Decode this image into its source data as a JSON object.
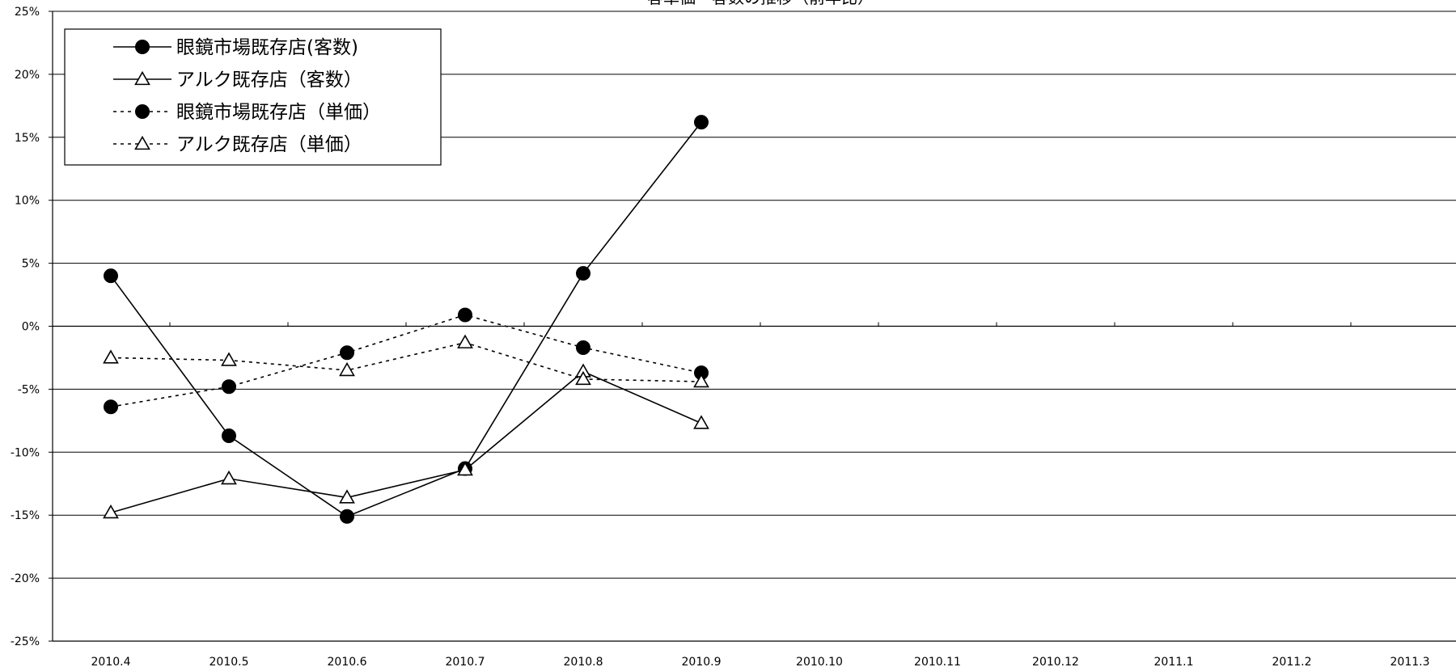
{
  "chart_data": {
    "type": "line",
    "title": "客単価・客数の推移（前年比）",
    "categories": [
      "2010.4",
      "2010.5",
      "2010.6",
      "2010.7",
      "2010.8",
      "2010.9",
      "2010.10",
      "2010.11",
      "2010.12",
      "2011.1",
      "2011.2",
      "2011.3"
    ],
    "y_ticks": [
      "25%",
      "20%",
      "15%",
      "10%",
      "5%",
      "0%",
      "-5%",
      "-10%",
      "-15%",
      "-20%",
      "-25%"
    ],
    "ylim": [
      -25,
      25
    ],
    "y_unit": "%",
    "grid": true,
    "legend_position": "top-left",
    "series": [
      {
        "name": "眼鏡市場既存店(客数)",
        "line_style": "solid",
        "marker": "filled-circle",
        "values": [
          4.0,
          -8.7,
          -15.1,
          -11.3,
          4.2,
          16.2,
          null,
          null,
          null,
          null,
          null,
          null
        ]
      },
      {
        "name": "アルク既存店（客数）",
        "line_style": "solid",
        "marker": "open-triangle",
        "values": [
          -14.8,
          -12.1,
          -13.6,
          -11.4,
          -3.6,
          -7.7,
          null,
          null,
          null,
          null,
          null,
          null
        ]
      },
      {
        "name": "眼鏡市場既存店（単価）",
        "line_style": "dotted",
        "marker": "filled-circle",
        "values": [
          -6.4,
          -4.8,
          -2.1,
          0.9,
          -1.7,
          -3.7,
          null,
          null,
          null,
          null,
          null,
          null
        ]
      },
      {
        "name": "アルク既存店（単価）",
        "line_style": "dotted",
        "marker": "open-triangle",
        "values": [
          -2.5,
          -2.7,
          -3.5,
          -1.3,
          -4.2,
          -4.4,
          null,
          null,
          null,
          null,
          null,
          null
        ]
      }
    ],
    "colors": {
      "line": "#000000",
      "grid": "#000000",
      "background": "#ffffff"
    }
  }
}
